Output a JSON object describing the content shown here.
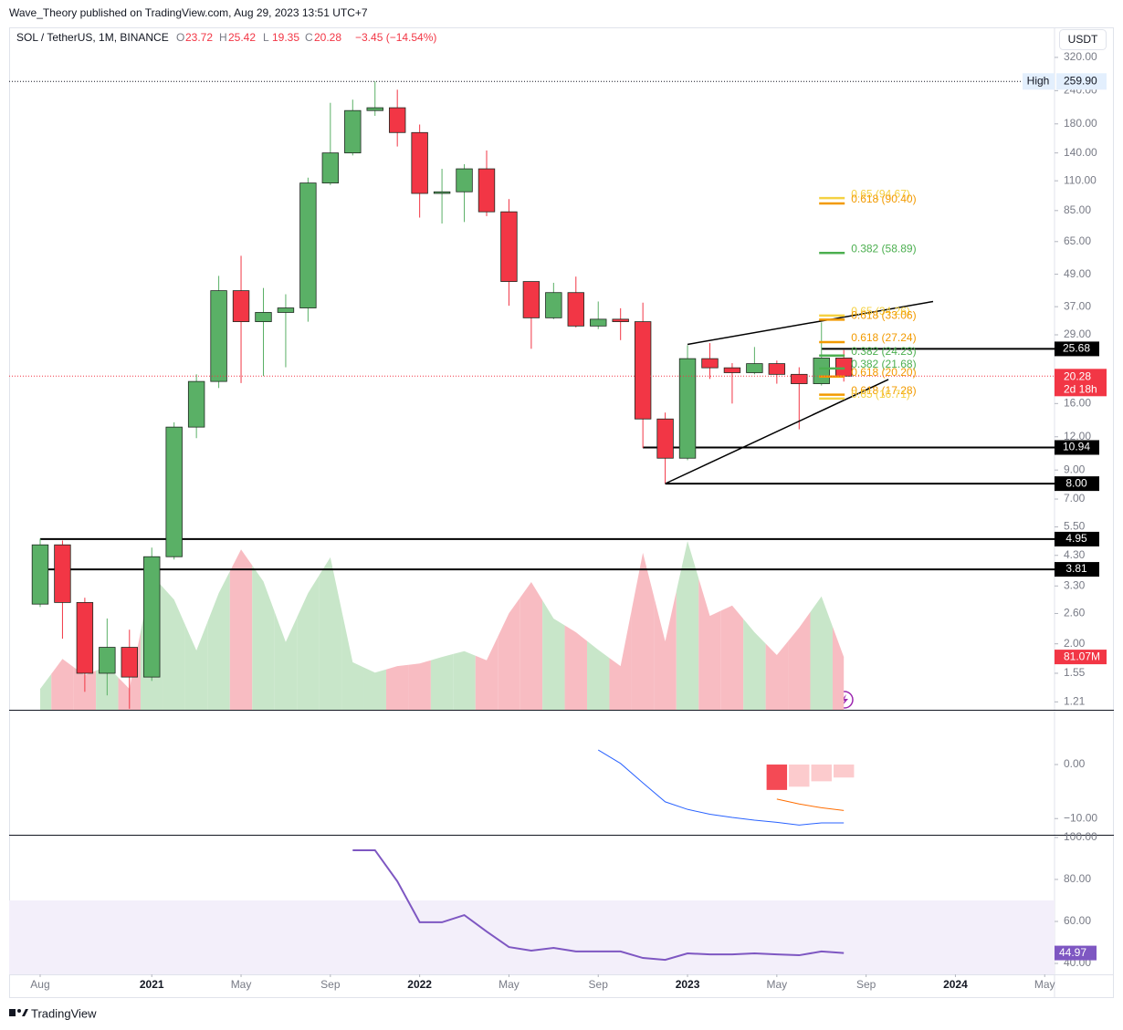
{
  "header": {
    "byline": "Wave_Theory published on TradingView.com, Aug 29, 2023 13:51 UTC+7"
  },
  "footer": {
    "logo": "TradingView"
  },
  "chart_data": [
    {
      "type": "candlestick",
      "title": "SOL / TetherUS, 1M, BINANCE",
      "currency": "USDT",
      "ohlc_letters": [
        "O",
        "H",
        "L",
        "C"
      ],
      "change": "−3.45 (−14.54%)",
      "countdown": "2d 18h",
      "log_scale": true,
      "up_color": "#5ab066",
      "down_color": "#f23645",
      "border_color": "#1e2a20",
      "x": [
        0,
        1,
        2,
        3,
        4,
        5,
        6,
        7,
        8,
        9,
        10,
        11,
        12,
        13,
        14,
        15,
        16,
        17,
        18,
        19,
        20,
        21,
        22,
        23,
        24,
        25,
        26,
        27,
        28,
        29,
        30,
        31,
        32,
        33,
        34,
        35,
        36
      ],
      "open": [
        2.82,
        4.71,
        2.86,
        1.55,
        1.94,
        1.5,
        4.25,
        13.05,
        19.37,
        42.5,
        32.5,
        35.2,
        36.6,
        107.9,
        140,
        202,
        207,
        167,
        98.6,
        100,
        122,
        84.1,
        46.0,
        33.6,
        41.8,
        31.3,
        33.2,
        32.5,
        14.0,
        9.97,
        23.6,
        21.8,
        20.9,
        22.6,
        20.6,
        19.0,
        23.72
      ],
      "high": [
        4.97,
        4.89,
        2.98,
        2.49,
        2.26,
        4.6,
        13.6,
        20.6,
        48.3,
        57.5,
        43.5,
        41.2,
        113,
        216,
        222,
        259.9,
        242,
        179,
        122,
        127,
        143,
        93.9,
        46.0,
        45.5,
        48.0,
        38.7,
        36.5,
        38.3,
        14.8,
        26.5,
        27.0,
        22.7,
        26.1,
        23.2,
        21.9,
        32.3,
        25.42
      ],
      "low": [
        2.75,
        2.09,
        1.32,
        1.28,
        1.14,
        1.45,
        4.15,
        11.86,
        18.3,
        19.1,
        20.3,
        21.9,
        32.5,
        106,
        137,
        193,
        148,
        80,
        76,
        77,
        81,
        37.3,
        25.7,
        33.2,
        30.9,
        30.5,
        27.7,
        10.9,
        8.0,
        9.8,
        19.8,
        16.0,
        20.6,
        19.0,
        12.8,
        18.7,
        19.35
      ],
      "close": [
        4.71,
        2.86,
        1.55,
        1.94,
        1.5,
        4.25,
        13.05,
        19.37,
        42.5,
        32.5,
        35.2,
        36.6,
        107.9,
        140,
        202,
        207,
        167,
        98.6,
        100,
        122,
        84.1,
        46.0,
        33.6,
        41.8,
        31.3,
        33.2,
        32.5,
        14.0,
        9.97,
        23.6,
        21.8,
        20.9,
        22.6,
        20.6,
        19.0,
        23.72,
        20.28
      ],
      "volume": {
        "up_color": "#c8e6c9",
        "down_color": "#f8bcc2",
        "label_color": "#f23645",
        "values": [
          32,
          78,
          53,
          67,
          32,
          207,
          169,
          91,
          179,
          246,
          197,
          104,
          179,
          234,
          73,
          57,
          67,
          71,
          81,
          90,
          76,
          148,
          196,
          140,
          119,
          92,
          67,
          241,
          105,
          259,
          144,
          160,
          119,
          84,
          126,
          174,
          81.07
        ],
        "value_labels": [
          null,
          null,
          null,
          null,
          null,
          null,
          null,
          null,
          null,
          null,
          null,
          null,
          null,
          null,
          null,
          null,
          null,
          null,
          null,
          null,
          null,
          null,
          null,
          null,
          null,
          null,
          null,
          null,
          null,
          null,
          null,
          null,
          null,
          null,
          null,
          null,
          "81.07M"
        ]
      },
      "ylim": [
        1.13,
        415
      ],
      "yticks": [
        {
          "value": 1.21,
          "label": "1.21"
        },
        {
          "value": 1.55,
          "label": "1.55"
        },
        {
          "value": 2,
          "label": "2.00"
        },
        {
          "value": 2.6,
          "label": "2.60"
        },
        {
          "value": 3.3,
          "label": "3.30"
        },
        {
          "value": 4.3,
          "label": "4.30"
        },
        {
          "value": 5.5,
          "label": "5.50"
        },
        {
          "value": 7,
          "label": "7.00"
        },
        {
          "value": 9,
          "label": "9.00"
        },
        {
          "value": 12,
          "label": "12.00"
        },
        {
          "value": 16,
          "label": "16.00"
        },
        {
          "value": 29,
          "label": "29.00"
        },
        {
          "value": 37,
          "label": "37.00"
        },
        {
          "value": 49,
          "label": "49.00"
        },
        {
          "value": 65,
          "label": "65.00"
        },
        {
          "value": 85,
          "label": "85.00"
        },
        {
          "value": 110,
          "label": "110.00"
        },
        {
          "value": 140,
          "label": "140.00"
        },
        {
          "value": 180,
          "label": "180.00"
        },
        {
          "value": 240,
          "label": "240.00"
        },
        {
          "value": 320,
          "label": "320.00"
        }
      ],
      "xlim": [
        -1.39,
        45.44
      ],
      "xticks": [
        {
          "value": 0,
          "label": "Aug"
        },
        {
          "value": 5,
          "label": "2021"
        },
        {
          "value": 9,
          "label": "May"
        },
        {
          "value": 13,
          "label": "Sep"
        },
        {
          "value": 17,
          "label": "2022"
        },
        {
          "value": 21,
          "label": "May"
        },
        {
          "value": 25,
          "label": "Sep"
        },
        {
          "value": 29,
          "label": "2023"
        },
        {
          "value": 33,
          "label": "May"
        },
        {
          "value": 37,
          "label": "Sep"
        },
        {
          "value": 41,
          "label": "2024"
        },
        {
          "value": 45,
          "label": "May"
        }
      ],
      "high_marker": {
        "text": "High",
        "value": 259.9,
        "value_label": "259.90"
      },
      "levels": [
        {
          "value": 25.68,
          "start": 35
        },
        {
          "value": 10.94,
          "start": 27
        },
        {
          "value": 8,
          "label": "8.00",
          "start": 28
        },
        {
          "value": 4.95,
          "start": 0
        },
        {
          "value": 3.81,
          "start": 0
        }
      ],
      "trendlines": [
        {
          "color": "#000000",
          "x": [
            29,
            40
          ],
          "values": [
            26.7,
            38.7
          ]
        },
        {
          "color": "#000000",
          "x": [
            28,
            38
          ],
          "values": [
            8,
            19.7
          ]
        }
      ],
      "fibs": [
        {
          "label": "0.65 (94.67)",
          "value": 94.67,
          "color": "#f5d142"
        },
        {
          "label": "0.618 (90.40)",
          "value": 90.4,
          "color": "#f29a00"
        },
        {
          "label": "0.382 (58.89)",
          "value": 58.89,
          "color": "#4caf50"
        },
        {
          "label": "0.65 (34.26)",
          "value": 34.26,
          "color": "#f5d142"
        },
        {
          "label": "0.618 (33.06)",
          "value": 33.06,
          "color": "#f29a00"
        },
        {
          "label": "0.618 (27.24)",
          "value": 27.24,
          "color": "#f29a00"
        },
        {
          "label": "0.382 (24.23)",
          "value": 24.23,
          "color": "#4caf50"
        },
        {
          "label": "0.382 (21.68)",
          "value": 21.68,
          "color": "#4caf50"
        },
        {
          "label": "0.618 (20.20)",
          "value": 20.2,
          "color": "#f29a00"
        },
        {
          "label": "0.618 (17.28)",
          "value": 17.28,
          "color": "#f29a00"
        },
        {
          "label": "0.65 (16.71)",
          "value": 16.71,
          "color": "#f5d142"
        }
      ]
    },
    {
      "type": "macd",
      "ylim": [
        -13,
        9.8
      ],
      "yticks": [
        {
          "value": 0,
          "label": "0.00"
        },
        {
          "value": -10,
          "label": "−10.00"
        }
      ],
      "lines": [
        {
          "color": "#2962ff",
          "x": [
            25,
            26,
            27,
            28,
            29,
            30,
            31,
            32,
            33,
            34,
            35,
            36
          ],
          "values": [
            2.7,
            0.2,
            -3.4,
            -6.9,
            -8.3,
            -9.2,
            -9.8,
            -10.3,
            -10.7,
            -11.2,
            -10.8,
            -10.8
          ]
        },
        {
          "color": "#ff6d00",
          "x": [
            33,
            34,
            35,
            36
          ],
          "values": [
            -6.4,
            -7.3,
            -8.0,
            -8.5
          ]
        }
      ],
      "histogram": {
        "x": [
          33,
          34,
          35,
          36
        ],
        "values": [
          -4.7,
          -4.1,
          -3.1,
          -2.4
        ],
        "colors": [
          "#f44a55",
          "#fccbcd",
          "#fccbcd",
          "#fccbcd"
        ]
      }
    },
    {
      "type": "rsi",
      "color": "#7e57c2",
      "band": [
        30,
        70
      ],
      "band_color": "#f3effa",
      "ylim": [
        34.8,
        100.4
      ],
      "yticks": [
        {
          "value": 100,
          "label": "100.00"
        },
        {
          "value": 80,
          "label": "80.00"
        },
        {
          "value": 60,
          "label": "60.00"
        },
        {
          "value": 40,
          "label": "40.00"
        }
      ],
      "x": [
        14,
        15,
        16,
        17,
        18,
        19,
        20,
        21,
        22,
        23,
        24,
        25,
        26,
        27,
        28,
        29,
        30,
        31,
        32,
        33,
        34,
        35,
        36
      ],
      "values": [
        93.9,
        93.9,
        79.1,
        59.6,
        59.6,
        63.0,
        55.2,
        47.8,
        46.1,
        47.4,
        45.7,
        45.7,
        45.7,
        42.6,
        41.7,
        44.8,
        44.3,
        44.3,
        44.8,
        44.3,
        43.9,
        45.7,
        44.97
      ]
    }
  ]
}
